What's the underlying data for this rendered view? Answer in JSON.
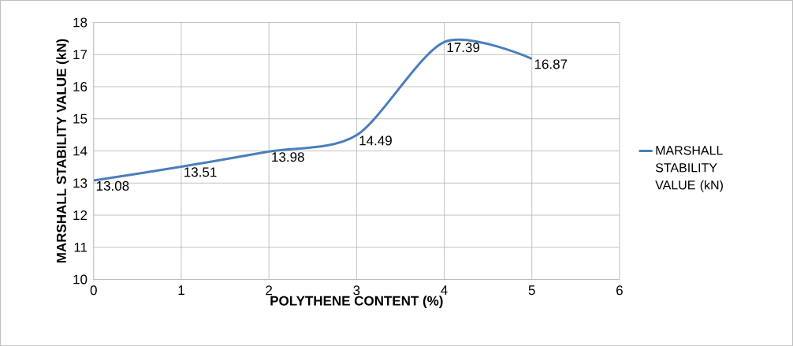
{
  "chart_data": {
    "type": "line",
    "xlabel": "POLYTHENE CONTENT (%)",
    "ylabel": "MARSHALL STABILITY VALUE (kN)",
    "x": [
      0,
      1,
      2,
      3,
      4,
      5
    ],
    "series": [
      {
        "name": "MARSHALL STABILITY VALUE (kN)",
        "color": "#4a7ebb",
        "values": [
          13.08,
          13.51,
          13.98,
          14.49,
          17.39,
          16.87
        ]
      }
    ],
    "xlim": [
      0,
      6
    ],
    "xticks": [
      0,
      1,
      2,
      3,
      4,
      5,
      6
    ],
    "ylim": [
      10,
      18
    ],
    "yticks": [
      10,
      11,
      12,
      13,
      14,
      15,
      16,
      17,
      18
    ],
    "grid": true,
    "legend": "right",
    "data_labels": true,
    "marker": "none",
    "line_style": "solid"
  }
}
